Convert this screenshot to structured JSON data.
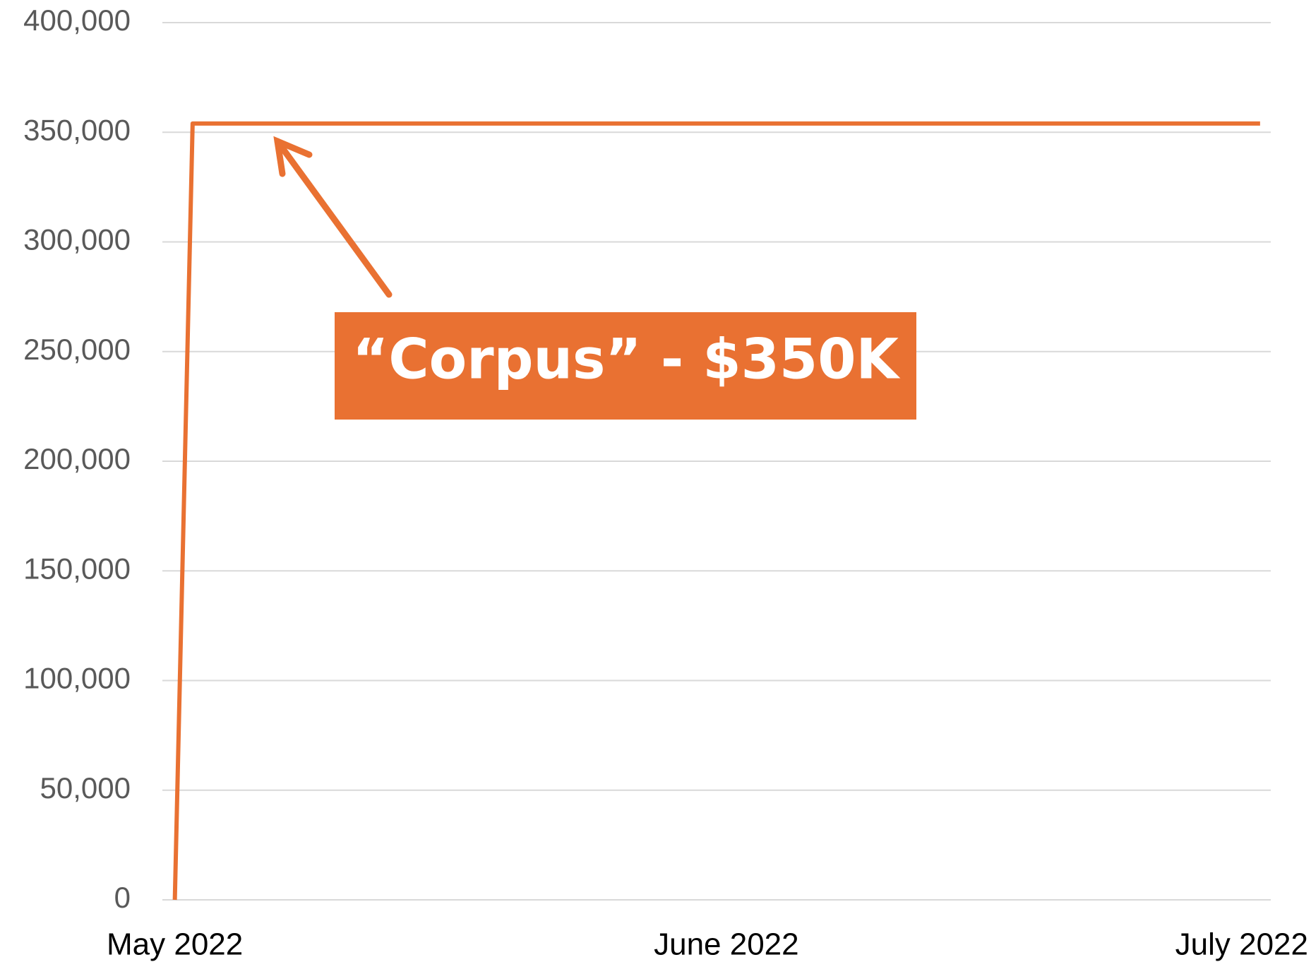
{
  "chart_data": {
    "type": "line",
    "x": [
      0,
      1,
      61
    ],
    "xlim": [
      -0.7,
      61.6
    ],
    "xticks": [
      {
        "value": 0,
        "label": "May 2022"
      },
      {
        "value": 31,
        "label": "June 2022"
      },
      {
        "value": 61,
        "label": "July 2022"
      }
    ],
    "series": [
      {
        "name": "Corpus",
        "color": "#E97132",
        "values": [
          0,
          354000,
          354000
        ]
      }
    ],
    "ylim": [
      0,
      400000
    ],
    "yticks": [
      0,
      {
        "value": 50000,
        "label": "50,000"
      },
      {
        "value": 100000,
        "label": "100,000"
      },
      {
        "value": 150000,
        "label": "150,000"
      },
      {
        "value": 200000,
        "label": "200,000"
      },
      {
        "value": 250000,
        "label": "250,000"
      },
      {
        "value": 300000,
        "label": "300,000"
      },
      {
        "value": 350000,
        "label": "350,000"
      },
      {
        "value": 400000,
        "label": "400,000"
      }
    ],
    "grid": true,
    "annotation": "“Corpus” - $350K"
  }
}
